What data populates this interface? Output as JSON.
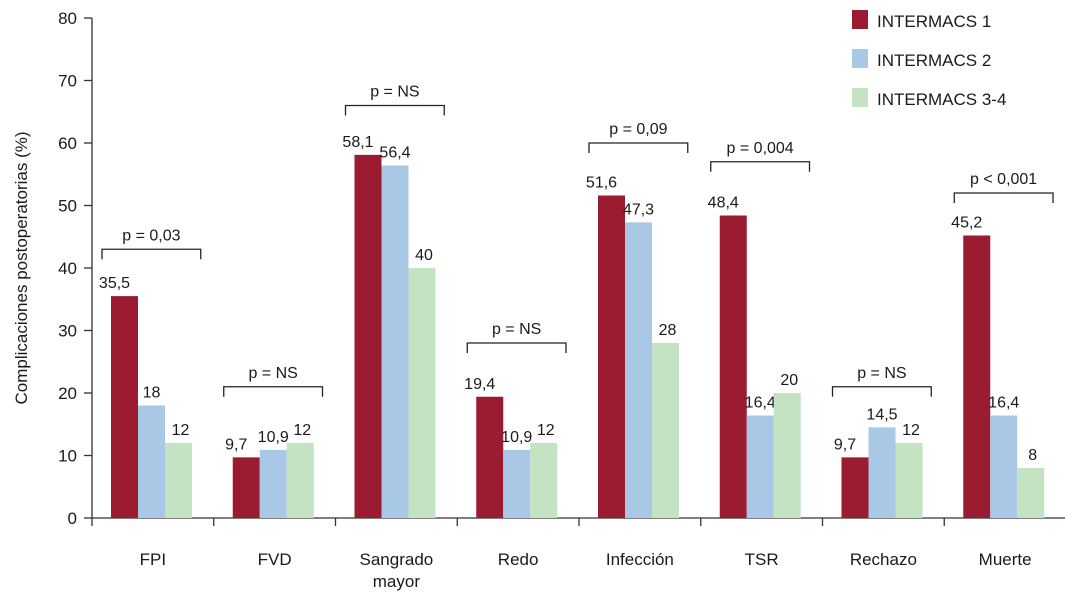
{
  "chart_data": {
    "type": "bar",
    "ylabel": "Complicaciones postoperatorias (%)",
    "ylim": [
      0,
      80
    ],
    "yticks": [
      "0",
      "10",
      "20",
      "30",
      "40",
      "50",
      "60",
      "70",
      "80"
    ],
    "categories": [
      "FPI",
      "FVD",
      "Sangrado mayor",
      "Redo",
      "Infección",
      "TSR",
      "Rechazo",
      "Muerte"
    ],
    "category_lines": [
      [
        "FPI"
      ],
      [
        "FVD"
      ],
      [
        "Sangrado",
        "mayor"
      ],
      [
        "Redo"
      ],
      [
        "Infección"
      ],
      [
        "TSR"
      ],
      [
        "Rechazo"
      ],
      [
        "Muerte"
      ]
    ],
    "series": [
      {
        "name": "INTERMACS 1",
        "color": "#9b1b30",
        "values": [
          35.5,
          9.7,
          58.1,
          19.4,
          51.6,
          48.4,
          9.7,
          45.2
        ],
        "labels": [
          "35,5",
          "9,7",
          "58,1",
          "19,4",
          "51,6",
          "48,4",
          "9,7",
          "45,2"
        ]
      },
      {
        "name": "INTERMACS 2",
        "color": "#a9c8e6",
        "values": [
          18,
          10.9,
          56.4,
          10.9,
          47.3,
          16.4,
          14.5,
          16.4
        ],
        "labels": [
          "18",
          "10,9",
          "56,4",
          "10,9",
          "47,3",
          "16,4",
          "14,5",
          "16,4"
        ]
      },
      {
        "name": "INTERMACS 3-4",
        "color": "#c3e3c3",
        "values": [
          12,
          12,
          40,
          12,
          28,
          20,
          12,
          8
        ],
        "labels": [
          "12",
          "12",
          "40",
          "12",
          "28",
          "20",
          "12",
          "8"
        ]
      }
    ],
    "pvalues": [
      "p = 0,03",
      "p = NS",
      "p = NS",
      "p = NS",
      "p = 0,09",
      "p = 0,004",
      "p = NS",
      "p < 0,001"
    ],
    "pvalue_levels": [
      43,
      21,
      66,
      28,
      60,
      57,
      21,
      52
    ],
    "legend_position": "top-right",
    "grid": false
  }
}
